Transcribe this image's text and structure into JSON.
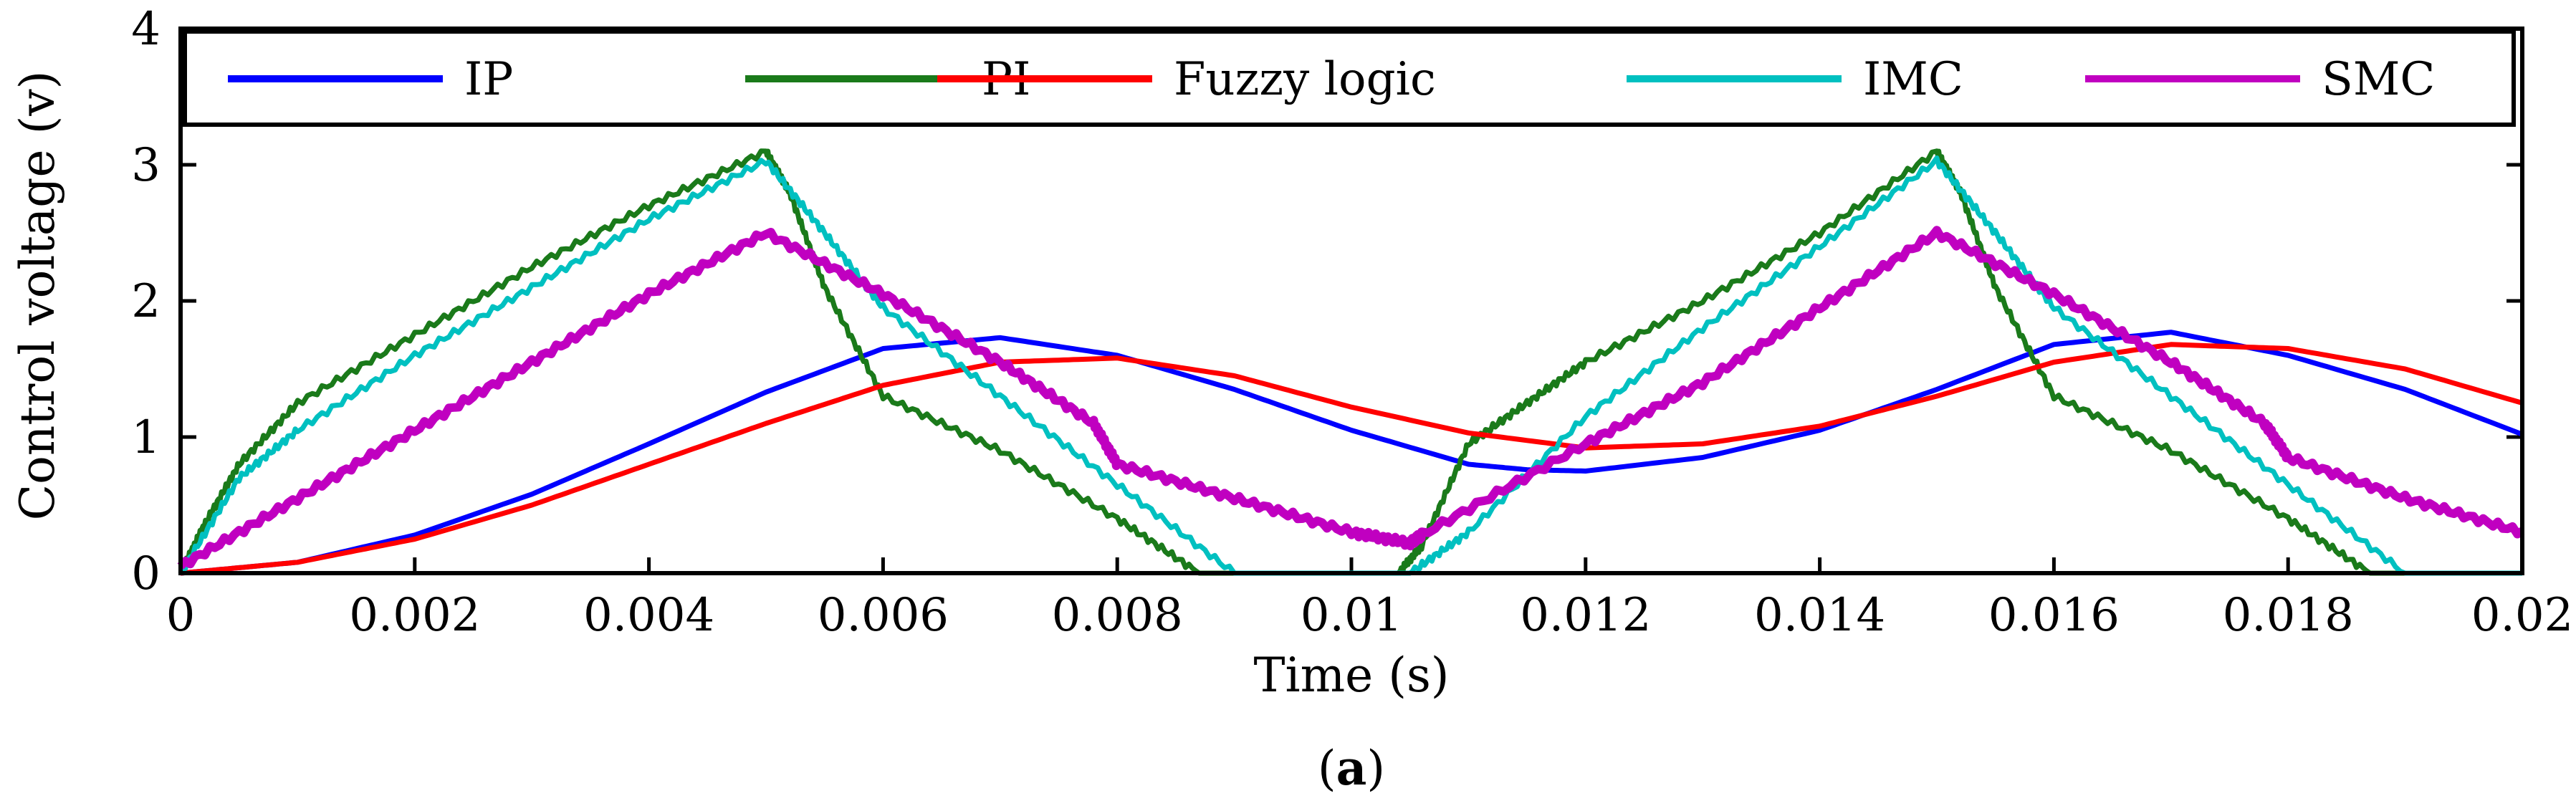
{
  "chart_data": {
    "type": "line",
    "title": "",
    "xlabel": "Time (s)",
    "ylabel": "Control voltage (v)",
    "caption_open": "(",
    "caption_letter": "a",
    "caption_close": ")",
    "xlim": [
      0,
      0.02
    ],
    "ylim": [
      0,
      4
    ],
    "xticks": [
      0,
      0.002,
      0.004,
      0.006,
      0.008,
      0.01,
      0.012,
      0.014,
      0.016,
      0.018,
      0.02
    ],
    "xtick_labels": [
      "0",
      "0.002",
      "0.004",
      "0.006",
      "0.008",
      "0.01",
      "0.012",
      "0.014",
      "0.016",
      "0.018",
      "0.02"
    ],
    "yticks": [
      0,
      1,
      2,
      3,
      4
    ],
    "ytick_labels": [
      "0",
      "1",
      "2",
      "3",
      "4"
    ],
    "grid": false,
    "legend_position": "top",
    "series": [
      {
        "name": "IP",
        "color": "#0000ff",
        "points": [
          [
            0,
            0
          ],
          [
            0.001,
            0.08
          ],
          [
            0.002,
            0.28
          ],
          [
            0.003,
            0.58
          ],
          [
            0.004,
            0.95
          ],
          [
            0.005,
            1.33
          ],
          [
            0.006,
            1.65
          ],
          [
            0.007,
            1.73
          ],
          [
            0.008,
            1.6
          ],
          [
            0.009,
            1.35
          ],
          [
            0.01,
            1.05
          ],
          [
            0.011,
            0.8
          ],
          [
            0.0115,
            0.76
          ],
          [
            0.012,
            0.75
          ],
          [
            0.013,
            0.85
          ],
          [
            0.014,
            1.05
          ],
          [
            0.015,
            1.35
          ],
          [
            0.016,
            1.68
          ],
          [
            0.017,
            1.77
          ],
          [
            0.018,
            1.6
          ],
          [
            0.019,
            1.35
          ],
          [
            0.02,
            1.02
          ]
        ]
      },
      {
        "name": "PI",
        "color": "#1a7a1a",
        "points": [
          [
            0,
            0
          ],
          [
            0.0002,
            0.35
          ],
          [
            0.0005,
            0.8
          ],
          [
            0.001,
            1.25
          ],
          [
            0.002,
            1.75
          ],
          [
            0.003,
            2.25
          ],
          [
            0.004,
            2.7
          ],
          [
            0.005,
            3.1
          ],
          [
            0.0052,
            2.8
          ],
          [
            0.0055,
            2.1
          ],
          [
            0.006,
            1.3
          ],
          [
            0.007,
            0.9
          ],
          [
            0.008,
            0.4
          ],
          [
            0.0087,
            0
          ],
          [
            0.0104,
            0
          ],
          [
            0.0106,
            0.2
          ],
          [
            0.011,
            0.95
          ],
          [
            0.0115,
            1.25
          ],
          [
            0.012,
            1.55
          ],
          [
            0.013,
            2.0
          ],
          [
            0.014,
            2.5
          ],
          [
            0.015,
            3.1
          ],
          [
            0.0152,
            2.8
          ],
          [
            0.0155,
            2.1
          ],
          [
            0.016,
            1.3
          ],
          [
            0.017,
            0.9
          ],
          [
            0.018,
            0.4
          ],
          [
            0.0187,
            0
          ],
          [
            0.02,
            0
          ]
        ]
      },
      {
        "name": "Fuzzy logic",
        "color": "#ff0000",
        "points": [
          [
            0,
            0
          ],
          [
            0.001,
            0.08
          ],
          [
            0.002,
            0.25
          ],
          [
            0.003,
            0.5
          ],
          [
            0.004,
            0.8
          ],
          [
            0.005,
            1.1
          ],
          [
            0.006,
            1.38
          ],
          [
            0.007,
            1.55
          ],
          [
            0.008,
            1.58
          ],
          [
            0.009,
            1.45
          ],
          [
            0.01,
            1.22
          ],
          [
            0.011,
            1.03
          ],
          [
            0.012,
            0.92
          ],
          [
            0.013,
            0.95
          ],
          [
            0.014,
            1.08
          ],
          [
            0.015,
            1.3
          ],
          [
            0.016,
            1.55
          ],
          [
            0.017,
            1.68
          ],
          [
            0.018,
            1.65
          ],
          [
            0.019,
            1.5
          ],
          [
            0.02,
            1.25
          ]
        ]
      },
      {
        "name": "IMC",
        "color": "#00c0c0",
        "points": [
          [
            0,
            0
          ],
          [
            0.0005,
            0.7
          ],
          [
            0.001,
            1.05
          ],
          [
            0.002,
            1.6
          ],
          [
            0.003,
            2.1
          ],
          [
            0.004,
            2.6
          ],
          [
            0.005,
            3.03
          ],
          [
            0.0055,
            2.5
          ],
          [
            0.006,
            1.95
          ],
          [
            0.007,
            1.3
          ],
          [
            0.008,
            0.65
          ],
          [
            0.009,
            0
          ],
          [
            0.0105,
            0
          ],
          [
            0.011,
            0.3
          ],
          [
            0.012,
            1.15
          ],
          [
            0.013,
            1.8
          ],
          [
            0.014,
            2.4
          ],
          [
            0.015,
            3.03
          ],
          [
            0.0155,
            2.5
          ],
          [
            0.016,
            1.95
          ],
          [
            0.017,
            1.3
          ],
          [
            0.018,
            0.65
          ],
          [
            0.019,
            0
          ],
          [
            0.02,
            0
          ]
        ]
      },
      {
        "name": "SMC",
        "color": "#c000c0",
        "points": [
          [
            0,
            0.05
          ],
          [
            0.001,
            0.55
          ],
          [
            0.002,
            1.05
          ],
          [
            0.003,
            1.55
          ],
          [
            0.004,
            2.05
          ],
          [
            0.005,
            2.5
          ],
          [
            0.006,
            2.05
          ],
          [
            0.007,
            1.55
          ],
          [
            0.0078,
            1.1
          ],
          [
            0.008,
            0.8
          ],
          [
            0.009,
            0.55
          ],
          [
            0.01,
            0.3
          ],
          [
            0.0105,
            0.22
          ],
          [
            0.0106,
            0.28
          ],
          [
            0.012,
            0.95
          ],
          [
            0.013,
            1.4
          ],
          [
            0.014,
            1.95
          ],
          [
            0.015,
            2.5
          ],
          [
            0.016,
            2.05
          ],
          [
            0.017,
            1.55
          ],
          [
            0.0178,
            1.1
          ],
          [
            0.018,
            0.85
          ],
          [
            0.019,
            0.55
          ],
          [
            0.02,
            0.3
          ]
        ]
      }
    ]
  }
}
